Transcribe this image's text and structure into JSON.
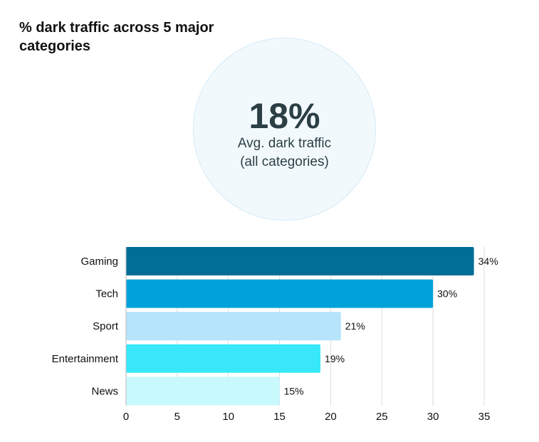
{
  "title": "% dark traffic across 5 major categories",
  "kpi": {
    "value": "18%",
    "label_line1": "Avg. dark traffic",
    "label_line2": "(all categories)"
  },
  "chart_data": {
    "type": "bar",
    "orientation": "horizontal",
    "title": "% dark traffic across 5 major categories",
    "categories": [
      "Gaming",
      "Tech",
      "Sport",
      "Entertainment",
      "News"
    ],
    "values": [
      34,
      30,
      21,
      19,
      15
    ],
    "data_labels": [
      "34%",
      "30%",
      "21%",
      "19%",
      "15%"
    ],
    "colors": [
      "#006e96",
      "#00a3d9",
      "#b5e4fb",
      "#38e8fa",
      "#c8f9fd"
    ],
    "xlim": [
      0,
      35
    ],
    "xticks": [
      "0",
      "5",
      "10",
      "15",
      "20",
      "25",
      "30",
      "35"
    ],
    "grid": true,
    "xlabel": "",
    "ylabel": ""
  }
}
